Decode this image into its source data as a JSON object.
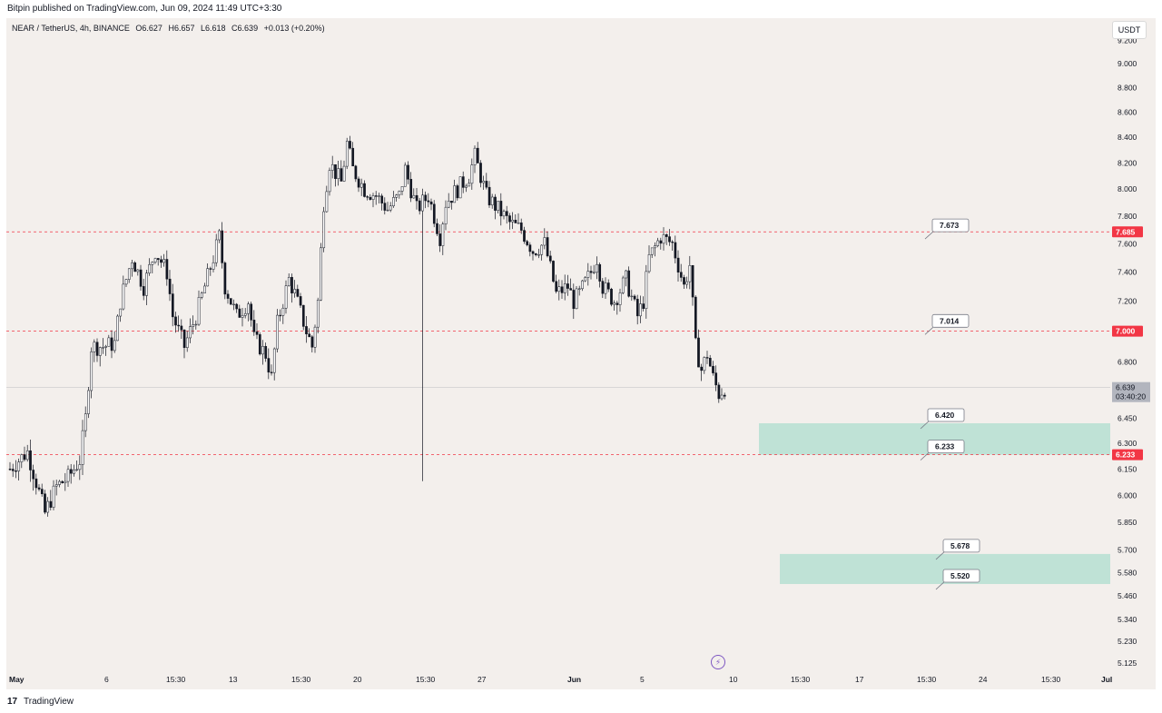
{
  "header": {
    "published_text": "Bitpin published on TradingView.com, Jun 09, 2024 11:49 UTC+3:30"
  },
  "legend": {
    "symbol": "NEAR / TetherUS, 4h, BINANCE",
    "open": "O6.627",
    "high": "H6.657",
    "low": "L6.618",
    "close": "C6.639",
    "change": "+0.013 (+0.20%)"
  },
  "currency": "USDT",
  "footer": {
    "logo": "17",
    "brand": "TradingView"
  },
  "colors": {
    "background": "#f3efec",
    "candle": "#131722",
    "level_line": "#f23645",
    "zone_fill": "#bfe2d6",
    "price_tag_bg": "#f23645",
    "last_price_bg": "#b2b5be"
  },
  "chart_data": {
    "type": "candlestick",
    "title": "NEAR / TetherUS, 4h, BINANCE",
    "y_axis": {
      "scale": "log",
      "ticks": [
        "9.200",
        "9.000",
        "8.800",
        "8.600",
        "8.400",
        "8.200",
        "8.000",
        "7.800",
        "7.600",
        "7.400",
        "7.200",
        "6.800",
        "6.450",
        "6.300",
        "6.150",
        "6.000",
        "5.850",
        "5.700",
        "5.580",
        "5.460",
        "5.340",
        "5.230",
        "5.125"
      ],
      "range": [
        5.09,
        9.33
      ]
    },
    "x_axis": {
      "ticks": [
        "May",
        "6",
        "15:30",
        "13",
        "15:30",
        "20",
        "15:30",
        "27",
        "Jun",
        "5",
        "10",
        "15:30",
        "17",
        "15:30",
        "24",
        "15:30",
        "Jul"
      ]
    },
    "horizontal_levels": [
      {
        "value": 7.685,
        "label": "7.685",
        "style": "dashed"
      },
      {
        "value": 7.0,
        "label": "7.000",
        "style": "dashed"
      },
      {
        "value": 6.233,
        "label": "6.233",
        "style": "dashed"
      }
    ],
    "zones": [
      {
        "top": 6.42,
        "bottom": 6.233
      },
      {
        "top": 5.678,
        "bottom": 5.52
      }
    ],
    "callouts": [
      "7.673",
      "7.014",
      "6.420",
      "6.233",
      "5.678",
      "5.520"
    ],
    "last_price": {
      "value": 6.639,
      "label": "6.639",
      "countdown": "03:40:20"
    },
    "close_path": [
      [
        0,
        6.15
      ],
      [
        3,
        6.25
      ],
      [
        6,
        5.9
      ],
      [
        8,
        6.05
      ],
      [
        10,
        6.1
      ],
      [
        12,
        6.2
      ],
      [
        13,
        6.45
      ],
      [
        14,
        6.9
      ],
      [
        16,
        6.9
      ],
      [
        18,
        6.92
      ],
      [
        19,
        7.2
      ],
      [
        21,
        7.5
      ],
      [
        23,
        7.3
      ],
      [
        25,
        7.55
      ],
      [
        27,
        7.4
      ],
      [
        28,
        7.1
      ],
      [
        30,
        6.9
      ],
      [
        32,
        7.1
      ],
      [
        35,
        7.5
      ],
      [
        36,
        7.65
      ],
      [
        37,
        7.3
      ],
      [
        39,
        7.1
      ],
      [
        41,
        7.2
      ],
      [
        42,
        6.95
      ],
      [
        44,
        6.85
      ],
      [
        45,
        6.7
      ],
      [
        46,
        7.05
      ],
      [
        48,
        7.35
      ],
      [
        49,
        7.25
      ],
      [
        51,
        7.0
      ],
      [
        52,
        6.9
      ],
      [
        53,
        7.2
      ],
      [
        54,
        7.9
      ],
      [
        55,
        8.2
      ],
      [
        57,
        8.05
      ],
      [
        58,
        8.35
      ],
      [
        59,
        8.15
      ],
      [
        61,
        8.0
      ],
      [
        63,
        7.95
      ],
      [
        65,
        7.85
      ],
      [
        67,
        7.95
      ],
      [
        68,
        8.15
      ],
      [
        70,
        7.85
      ],
      [
        72,
        7.95
      ],
      [
        74,
        7.65
      ],
      [
        75,
        7.9
      ],
      [
        77,
        8.0
      ],
      [
        79,
        8.1
      ],
      [
        80,
        8.25
      ],
      [
        82,
        7.95
      ],
      [
        84,
        7.85
      ],
      [
        86,
        7.75
      ],
      [
        88,
        7.7
      ],
      [
        90,
        7.55
      ],
      [
        92,
        7.6
      ],
      [
        94,
        7.25
      ],
      [
        96,
        7.3
      ],
      [
        97,
        7.2
      ],
      [
        98,
        7.25
      ],
      [
        100,
        7.4
      ],
      [
        101,
        7.5
      ],
      [
        102,
        7.3
      ],
      [
        104,
        7.2
      ],
      [
        106,
        7.35
      ],
      [
        108,
        7.1
      ],
      [
        109,
        7.2
      ],
      [
        110,
        7.5
      ],
      [
        112,
        7.65
      ],
      [
        114,
        7.6
      ],
      [
        116,
        7.3
      ],
      [
        117,
        7.45
      ],
      [
        118,
        6.9
      ],
      [
        119,
        6.75
      ],
      [
        120,
        6.85
      ],
      [
        121,
        6.7
      ],
      [
        122,
        6.6
      ],
      [
        123,
        6.639
      ]
    ],
    "low_outliers": {
      "118": 6.08
    }
  }
}
